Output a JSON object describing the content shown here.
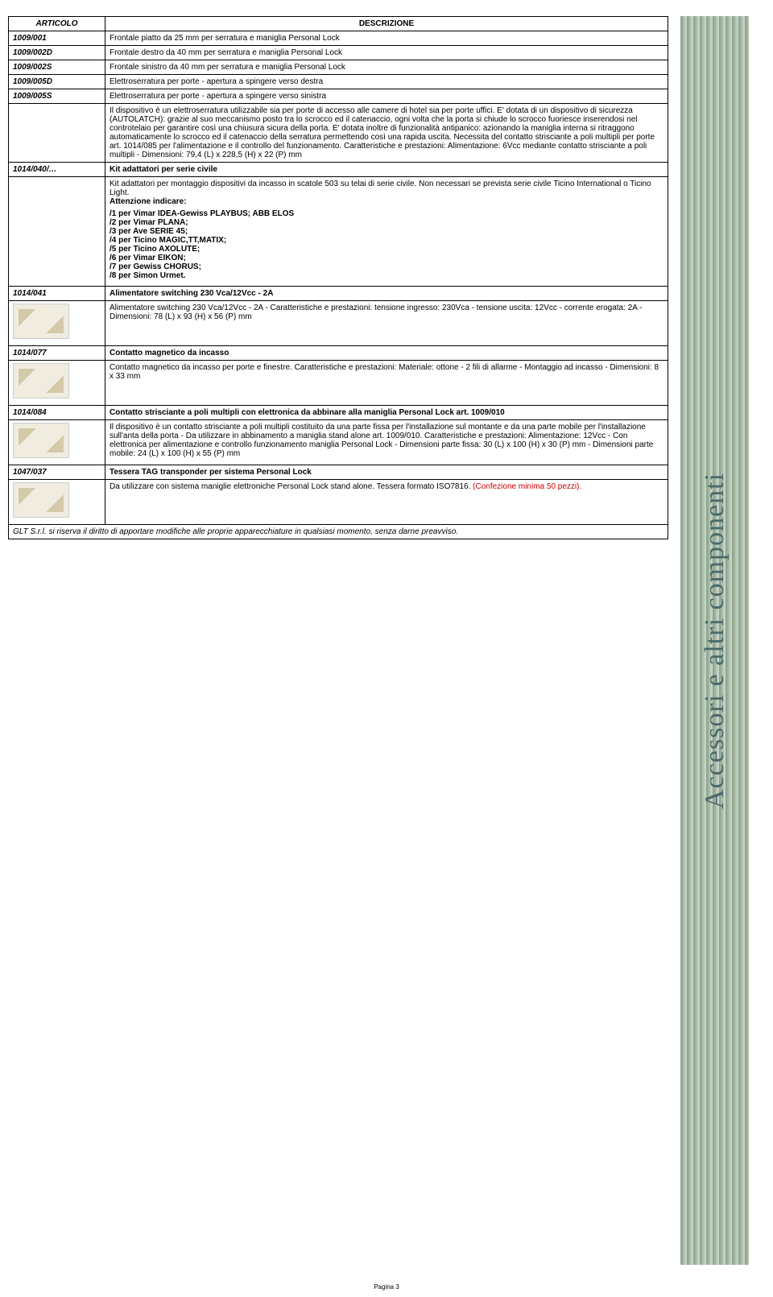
{
  "headers": {
    "articolo": "ARTICOLO",
    "descrizione": "DESCRIZIONE"
  },
  "rows": [
    {
      "art": "1009/001",
      "desc": "Frontale piatto da 25 mm per serratura e maniglia Personal Lock"
    },
    {
      "art": "1009/002D",
      "desc": "Frontale destro da 40 mm per serratura e maniglia Personal Lock"
    },
    {
      "art": "1009/002S",
      "desc": "Frontale sinistro da 40 mm per serratura e maniglia Personal Lock"
    },
    {
      "art": "1009/005D",
      "desc": "Elettroserratura per porte - apertura a spingere verso destra"
    },
    {
      "art": "1009/005S",
      "desc": "Elettroserratura per porte - apertura a spingere verso sinistra"
    }
  ],
  "body1": "Il dispositivo è un elettroserratura utilizzabile sia per porte di accesso alle camere di hotel sia per porte uffici. E' dotata di un dispositivo di sicurezza (AUTOLATCH): grazie al suo meccanismo posto tra lo scrocco ed il catenaccio, ogni volta che la porta si chiude lo scrocco fuoriesce inserendosi nel controtelaio per garantire così una chiusura sicura della porta. E' dotata inoltre di funzionalità antipanico: azionando la maniglia interna si ritraggono automaticamente lo scrocco ed il catenaccio della serratura permettendo così una rapida uscita. Necessita del contatto strisciante a poli multipli per porte art. 1014/085 per l'alimentazione e il controllo del funzionamento. Caratteristiche e prestazioni: Alimentazione: 6Vcc mediante contatto strisciante a poli multipli - Dimensioni: 79,4 (L) x 228,5 (H) x 22 (P) mm",
  "row1014040": {
    "art": "1014/040/…",
    "desc": "Kit adattatori per serie civile"
  },
  "kitIntro": "Kit adattatori per montaggio dispositivi da incasso in scatole 503 su telai di serie civile. Non necessari se prevista serie civile Ticino International o Ticino Light.",
  "attenzione": "Attenzione indicare:",
  "kitList": [
    "/1 per Vimar IDEA-Gewiss PLAYBUS; ABB ELOS",
    "/2 per Vimar PLANA;",
    "/3 per Ave SERIE 45;",
    "/4 per Ticino MAGIC,TT,MATIX;",
    "/5 per Ticino AXOLUTE;",
    "/6 per Vimar EIKON;",
    "/7 per Gewiss CHORUS;",
    "/8 per Simon Urmet."
  ],
  "row1014041": {
    "art": "1014/041",
    "desc": "Alimentatore switching 230 Vca/12Vcc - 2A"
  },
  "body1014041": "Alimentatore switching 230 Vca/12Vcc - 2A - Caratteristiche e prestazioni: tensione ingresso: 230Vca - tensione uscita: 12Vcc - corrente erogata: 2A - Dimensioni: 78 (L) x 93 (H) x 56 (P) mm",
  "row1014077": {
    "art": "1014/077",
    "desc": "Contatto magnetico da incasso"
  },
  "body1014077": "Contatto magnetico da incasso per porte e finestre. Caratteristiche e prestazioni: Materiale: ottone - 2 fili di allarme - Montaggio ad incasso - Dimensioni: 8 x 33 mm",
  "row1014084": {
    "art": "1014/084",
    "desc": "Contatto strisciante a poli multipli con elettronica da abbinare alla maniglia Personal Lock art. 1009/010"
  },
  "body1014084": "Il dispositivo è un contatto strisciante a poli multipli costituito da una parte fissa per l'installazione sul montante e da una parte mobile per l'installazione sull'anta della porta - Da utilizzare in abbinamento a maniglia stand alone art. 1009/010. Caratteristiche e prestazioni: Alimentazione: 12Vcc - Con elettronica per alimentazione e controllo funzionamento maniglia Personal Lock - Dimensioni parte fissa: 30 (L) x 100 (H) x 30 (P) mm - Dimensioni parte mobile: 24 (L) x 100 (H) x 55 (P) mm",
  "row1047037": {
    "art": "1047/037",
    "desc": "Tessera TAG transponder per sistema Personal Lock"
  },
  "body1047037_a": "Da utilizzare con sistema maniglie elettroniche Personal Lock stand alone. Tessera formato ISO7816. ",
  "body1047037_b": "(Confezione minima 50 pezzi).",
  "footnote": "GLT S.r.l. si riserva il diritto di apportare modifiche alle proprie apparecchiature in qualsiasi momento, senza darne preavviso.",
  "sideText": "Accessori e altri componenti",
  "pageNo": "Pagina 3"
}
